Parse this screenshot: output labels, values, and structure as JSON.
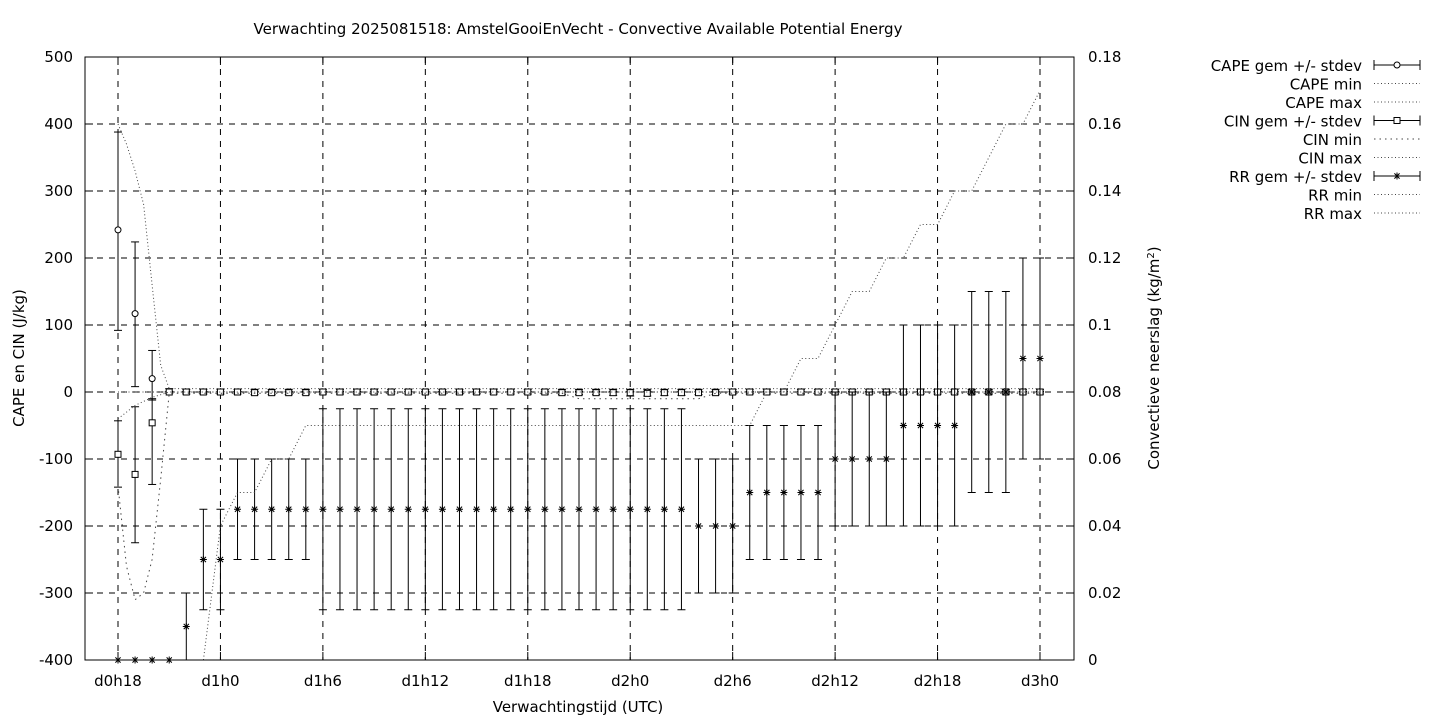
{
  "chart_data": {
    "type": "line",
    "title": "Verwachting 2025081518: AmstelGooiEnVecht - Convective Available Potential Energy",
    "xlabel": "Verwachtingstijd (UTC)",
    "ylabel": "CAPE en CIN (J/kg)",
    "y2label": "Convectieve neerslag",
    "y2label_unit": "(kg/m",
    "y2label_unit_sup": "2",
    "y2label_unit_close": ")",
    "x_unit": "hours since d0h18",
    "xlim": [
      0,
      56
    ],
    "ylim": [
      -400,
      500
    ],
    "y2lim": [
      0,
      0.18
    ],
    "grid": true,
    "legend_position": "outside-right",
    "x_ticks": [
      {
        "x": 0,
        "label": "d0h18"
      },
      {
        "x": 6,
        "label": "d1h0"
      },
      {
        "x": 12,
        "label": "d1h6"
      },
      {
        "x": 18,
        "label": "d1h12"
      },
      {
        "x": 24,
        "label": "d1h18"
      },
      {
        "x": 30,
        "label": "d2h0"
      },
      {
        "x": 36,
        "label": "d2h6"
      },
      {
        "x": 42,
        "label": "d2h12"
      },
      {
        "x": 48,
        "label": "d2h18"
      },
      {
        "x": 54,
        "label": "d3h0"
      }
    ],
    "y_ticks": [
      "-400",
      "-300",
      "-200",
      "-100",
      "0",
      "100",
      "200",
      "300",
      "400",
      "500"
    ],
    "y2_ticks": [
      "0",
      "0.02",
      "0.04",
      "0.06",
      "0.08",
      "0.1",
      "0.12",
      "0.14",
      "0.16",
      "0.18"
    ],
    "series": [
      {
        "name": "CAPE gem +/- stdev",
        "axis": "y",
        "marker": "circle",
        "x": [
          0,
          1,
          2,
          3,
          4,
          5,
          6,
          7,
          8,
          9,
          10,
          11,
          12,
          13,
          14,
          15,
          16,
          17,
          18,
          19,
          20,
          21,
          22,
          23,
          24,
          25,
          26,
          27,
          28,
          29,
          30,
          31,
          32,
          33,
          34,
          35,
          36,
          37,
          38,
          39,
          40,
          41,
          42,
          43,
          44,
          45,
          46,
          47,
          48,
          49,
          50,
          51,
          52,
          53,
          54
        ],
        "mean": [
          242,
          117,
          20,
          0,
          0,
          0,
          0,
          0,
          0,
          0,
          0,
          0,
          0,
          0,
          0,
          0,
          0,
          0,
          0,
          0,
          0,
          0,
          0,
          0,
          0,
          0,
          0,
          0,
          0,
          0,
          0,
          0,
          0,
          0,
          0,
          0,
          0,
          0,
          0,
          0,
          0,
          0,
          0,
          0,
          0,
          0,
          0,
          0,
          0,
          0,
          0,
          0,
          0,
          0,
          0
        ],
        "lo": [
          92,
          8,
          -12,
          0,
          0,
          0,
          0,
          0,
          0,
          0,
          0,
          0,
          0,
          0,
          0,
          0,
          0,
          0,
          0,
          0,
          0,
          0,
          0,
          0,
          0,
          0,
          0,
          0,
          0,
          0,
          0,
          0,
          0,
          0,
          0,
          0,
          0,
          0,
          0,
          0,
          0,
          0,
          0,
          0,
          0,
          0,
          0,
          0,
          0,
          0,
          0,
          0,
          0,
          0,
          0
        ],
        "hi": [
          388,
          224,
          62,
          5,
          4,
          4,
          4,
          4,
          4,
          4,
          4,
          4,
          4,
          4,
          4,
          4,
          4,
          4,
          4,
          4,
          4,
          4,
          4,
          4,
          4,
          4,
          4,
          4,
          4,
          4,
          4,
          4,
          4,
          4,
          4,
          4,
          4,
          4,
          4,
          4,
          4,
          4,
          4,
          4,
          4,
          4,
          4,
          4,
          4,
          4,
          4,
          4,
          4,
          4,
          4
        ]
      },
      {
        "name": "CAPE min",
        "axis": "y",
        "style": "dotted",
        "x": [
          0,
          1,
          2,
          3,
          54
        ],
        "values": [
          0,
          0,
          0,
          0,
          0
        ]
      },
      {
        "name": "CAPE max",
        "axis": "y",
        "style": "dotted",
        "x": [
          0,
          0.5,
          1,
          1.5,
          2,
          2.5,
          3,
          54
        ],
        "values": [
          400,
          370,
          330,
          280,
          160,
          40,
          5,
          5
        ]
      },
      {
        "name": "CIN gem +/- stdev",
        "axis": "y",
        "marker": "square",
        "x": [
          0,
          1,
          2,
          3,
          4,
          5,
          6,
          7,
          8,
          9,
          10,
          11,
          12,
          13,
          14,
          15,
          16,
          17,
          18,
          19,
          20,
          21,
          22,
          23,
          24,
          25,
          26,
          27,
          28,
          29,
          30,
          31,
          32,
          33,
          34,
          35,
          36,
          37,
          38,
          39,
          40,
          41,
          42,
          43,
          44,
          45,
          46,
          47,
          48,
          49,
          50,
          51,
          52,
          53,
          54
        ],
        "mean": [
          -93,
          -123,
          -46,
          0,
          0,
          0,
          0,
          0,
          -1,
          -1,
          -1,
          -1,
          0,
          0,
          0,
          0,
          0,
          0,
          0,
          0,
          0,
          0,
          0,
          0,
          0,
          0,
          -1,
          -1,
          -1,
          -1,
          -1,
          -2,
          -1,
          -1,
          -1,
          -1,
          0,
          0,
          0,
          0,
          0,
          0,
          0,
          0,
          0,
          0,
          0,
          0,
          0,
          0,
          0,
          0,
          0,
          0,
          0
        ],
        "lo": [
          -142,
          -225,
          -138,
          -2,
          -3,
          -3,
          -3,
          -3,
          -4,
          -4,
          -4,
          -4,
          -3,
          -3,
          -3,
          -3,
          -3,
          -3,
          -3,
          -3,
          -3,
          -3,
          -3,
          -3,
          -3,
          -3,
          -4,
          -4,
          -4,
          -5,
          -6,
          -6,
          -5,
          -5,
          -4,
          -4,
          -3,
          -3,
          -3,
          -3,
          -3,
          -3,
          -3,
          -3,
          -3,
          -3,
          -3,
          -3,
          -3,
          -3,
          -3,
          -3,
          -3,
          -3,
          -3
        ],
        "hi": [
          -43,
          -22,
          -10,
          1,
          1,
          1,
          1,
          1,
          1,
          1,
          1,
          1,
          1,
          1,
          1,
          1,
          1,
          1,
          1,
          1,
          1,
          1,
          1,
          1,
          1,
          1,
          1,
          1,
          1,
          1,
          1,
          1,
          1,
          1,
          1,
          1,
          1,
          1,
          1,
          1,
          1,
          1,
          1,
          1,
          1,
          1,
          1,
          1,
          1,
          1,
          1,
          1,
          1,
          1,
          1
        ]
      },
      {
        "name": "CIN min",
        "axis": "y",
        "style": "dotted-coarse",
        "x": [
          0,
          0.5,
          1,
          1.5,
          2,
          2.5,
          3,
          26,
          27,
          34,
          35,
          54
        ],
        "values": [
          -140,
          -260,
          -310,
          -300,
          -250,
          -130,
          -2,
          -2,
          -10,
          -10,
          -2,
          -2
        ]
      },
      {
        "name": "CIN max",
        "axis": "y",
        "style": "dotted",
        "x": [
          0,
          1,
          2,
          3,
          54
        ],
        "values": [
          -40,
          -20,
          -8,
          0,
          0
        ]
      },
      {
        "name": "RR gem +/- stdev",
        "axis": "y2",
        "marker": "asterisk",
        "x": [
          0,
          1,
          2,
          3,
          4,
          5,
          6,
          7,
          8,
          9,
          10,
          11,
          12,
          13,
          14,
          15,
          16,
          17,
          18,
          19,
          20,
          21,
          22,
          23,
          24,
          25,
          26,
          27,
          28,
          29,
          30,
          31,
          32,
          33,
          34,
          35,
          36,
          37,
          38,
          39,
          40,
          41,
          42,
          43,
          44,
          45,
          46,
          47,
          48,
          49,
          50,
          51,
          52,
          53,
          54
        ],
        "mean": [
          0,
          0,
          0,
          0,
          0.01,
          0.03,
          0.03,
          0.045,
          0.045,
          0.045,
          0.045,
          0.045,
          0.045,
          0.045,
          0.045,
          0.045,
          0.045,
          0.045,
          0.045,
          0.045,
          0.045,
          0.045,
          0.045,
          0.045,
          0.045,
          0.045,
          0.045,
          0.045,
          0.045,
          0.045,
          0.045,
          0.045,
          0.045,
          0.045,
          0.04,
          0.04,
          0.04,
          0.05,
          0.05,
          0.05,
          0.05,
          0.05,
          0.06,
          0.06,
          0.06,
          0.06,
          0.07,
          0.07,
          0.07,
          0.07,
          0.08,
          0.08,
          0.08,
          0.09,
          0.09
        ],
        "lo": [
          0,
          0,
          0,
          0,
          0,
          0.015,
          0.015,
          0.03,
          0.03,
          0.03,
          0.03,
          0.03,
          0.015,
          0.015,
          0.015,
          0.015,
          0.015,
          0.015,
          0.015,
          0.015,
          0.015,
          0.015,
          0.015,
          0.015,
          0.015,
          0.015,
          0.015,
          0.015,
          0.015,
          0.015,
          0.015,
          0.015,
          0.015,
          0.015,
          0.02,
          0.02,
          0.02,
          0.03,
          0.03,
          0.03,
          0.03,
          0.03,
          0.04,
          0.04,
          0.04,
          0.04,
          0.04,
          0.04,
          0.04,
          0.04,
          0.05,
          0.05,
          0.05,
          0.06,
          0.06
        ],
        "hi": [
          0,
          0,
          0,
          0,
          0.02,
          0.045,
          0.045,
          0.06,
          0.06,
          0.06,
          0.06,
          0.06,
          0.075,
          0.075,
          0.075,
          0.075,
          0.075,
          0.075,
          0.075,
          0.075,
          0.075,
          0.075,
          0.075,
          0.075,
          0.075,
          0.075,
          0.075,
          0.075,
          0.075,
          0.075,
          0.075,
          0.075,
          0.075,
          0.075,
          0.06,
          0.06,
          0.06,
          0.07,
          0.07,
          0.07,
          0.07,
          0.07,
          0.08,
          0.08,
          0.08,
          0.08,
          0.1,
          0.1,
          0.1,
          0.1,
          0.11,
          0.11,
          0.11,
          0.12,
          0.12
        ]
      },
      {
        "name": "RR min",
        "axis": "y2",
        "style": "dotted",
        "x": [
          0,
          54
        ],
        "values": [
          0,
          0
        ]
      },
      {
        "name": "RR max",
        "axis": "y2",
        "style": "dotted",
        "x": [
          5,
          6,
          7,
          8,
          9,
          10,
          11,
          12,
          13,
          14,
          15,
          16,
          17,
          18,
          19,
          20,
          21,
          22,
          23,
          24,
          25,
          26,
          27,
          28,
          29,
          30,
          31,
          32,
          33,
          34,
          35,
          36,
          37,
          38,
          39,
          40,
          41,
          42,
          43,
          44,
          45,
          46,
          47,
          48,
          49,
          50,
          51,
          52,
          53,
          54
        ],
        "values": [
          0,
          0.04,
          0.05,
          0.05,
          0.06,
          0.06,
          0.07,
          0.07,
          0.07,
          0.07,
          0.07,
          0.07,
          0.07,
          0.07,
          0.07,
          0.07,
          0.07,
          0.07,
          0.07,
          0.07,
          0.07,
          0.07,
          0.07,
          0.07,
          0.07,
          0.07,
          0.07,
          0.07,
          0.07,
          0.07,
          0.07,
          0.07,
          0.07,
          0.08,
          0.08,
          0.09,
          0.09,
          0.1,
          0.11,
          0.11,
          0.12,
          0.12,
          0.13,
          0.13,
          0.14,
          0.14,
          0.15,
          0.16,
          0.16,
          0.17
        ]
      }
    ]
  }
}
